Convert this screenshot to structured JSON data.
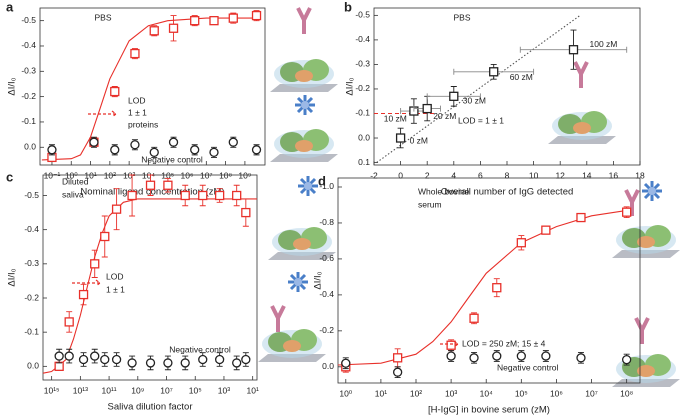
{
  "chart_data": [
    {
      "type": "scatter",
      "panel": "a",
      "xlabel": "Nominal ligand concentration (zM)",
      "ylabel": "ΔI/I₀",
      "log_x": true,
      "xlim": [
        0.024,
        11000000000
      ],
      "ylim": [
        0.07,
        -0.55
      ],
      "xticks": [
        {
          "value": 0.1,
          "label": "10⁻¹"
        },
        {
          "value": 1,
          "label": "10⁰"
        },
        {
          "value": 10,
          "label": "10¹"
        },
        {
          "value": 100,
          "label": "10²"
        },
        {
          "value": 1000,
          "label": "10³"
        },
        {
          "value": 10000,
          "label": "10⁴"
        },
        {
          "value": 100000,
          "label": "10⁵"
        },
        {
          "value": 1000000,
          "label": "10⁶"
        },
        {
          "value": 10000000,
          "label": "10⁷"
        },
        {
          "value": 100000000,
          "label": "10⁸"
        },
        {
          "value": 1000000000,
          "label": "10⁹"
        }
      ],
      "yticks": [
        -0.5,
        -0.4,
        -0.3,
        -0.2,
        -0.1,
        {
          "value": 0,
          "label": "0.0"
        }
      ],
      "series": [
        {
          "marker": "line",
          "color": "#e8302a",
          "x": [
            0.03,
            1,
            3,
            10,
            30,
            100,
            1000,
            10000,
            100000,
            10000000,
            4000000000
          ],
          "values": [
            0.05,
            0.045,
            0.03,
            -0.04,
            -0.15,
            -0.27,
            -0.42,
            -0.48,
            -0.5,
            -0.51,
            -0.51
          ]
        },
        {
          "marker": "square",
          "color": "#e8302a",
          "x": [
            0.1,
            15,
            180,
            2000,
            20000,
            200000,
            2500000,
            25000000,
            250000000,
            4000000000
          ],
          "values": [
            0.04,
            -0.02,
            -0.22,
            -0.37,
            -0.46,
            -0.47,
            -0.5,
            -0.5,
            -0.51,
            -0.52
          ],
          "errors": [
            0.01,
            0.01,
            0.02,
            0.02,
            0.02,
            0.05,
            0.02,
            0.01,
            0.02,
            0.02
          ]
        },
        {
          "marker": "circle",
          "color": "#222222",
          "x": [
            0.1,
            15,
            180,
            2000,
            20000,
            200000,
            2500000,
            25000000,
            250000000,
            4000000000
          ],
          "values": [
            0.01,
            -0.02,
            0.01,
            -0.01,
            0.02,
            -0.02,
            0.01,
            0.02,
            -0.02,
            0.01
          ],
          "errors": [
            0.02,
            0.02,
            0.02,
            0.02,
            0.02,
            0.02,
            0.02,
            0.02,
            0.02,
            0.02
          ]
        }
      ],
      "annotations": [
        {
          "text": "PBS",
          "color": "#e8302a"
        },
        {
          "text": "LOD",
          "color": "#e8302a"
        },
        {
          "text": "1 ± 1",
          "color": "#e8302a"
        },
        {
          "text": "proteins",
          "color": "#e8302a"
        },
        {
          "text": "Negative control",
          "color": "#222222"
        }
      ]
    },
    {
      "type": "scatter",
      "panel": "b",
      "xlabel": "Overall number of IgG detected",
      "ylabel": "ΔI/I₀",
      "log_x": false,
      "xlim": [
        -2,
        18
      ],
      "ylim": [
        0.11,
        -0.53
      ],
      "xticks": [
        -2,
        0,
        2,
        4,
        6,
        8,
        10,
        12,
        14,
        16,
        18
      ],
      "yticks": [
        -0.5,
        -0.4,
        -0.3,
        -0.2,
        -0.1,
        {
          "value": 0,
          "label": "0.0"
        },
        0.1
      ],
      "series": [
        {
          "marker": "line",
          "dash": "dotted",
          "color": "#555555",
          "x": [
            -1.8,
            13.5
          ],
          "values": [
            0.1,
            -0.5
          ]
        },
        {
          "marker": "line",
          "dash": "dashed",
          "color": "#e8302a",
          "x": [
            -2,
            2.6
          ],
          "values": [
            -0.1,
            -0.1
          ]
        },
        {
          "marker": "square",
          "color": "#222222",
          "x": [
            0,
            1,
            2,
            4,
            7,
            13
          ],
          "values": [
            0.0,
            -0.11,
            -0.12,
            -0.17,
            -0.27,
            -0.36
          ],
          "errors": [
            0.04,
            0.05,
            0.05,
            0.04,
            0.03,
            0.08
          ],
          "xerrors": [
            0.3,
            1,
            1,
            2,
            3,
            4
          ],
          "labels": [
            "0 zM",
            "10 zM",
            "20 zM",
            "30 zM",
            "60 zM",
            "100 zM"
          ]
        }
      ],
      "annotations": [
        {
          "text": "PBS",
          "color": "#e8302a"
        },
        {
          "text": "LOD = 1 ± 1",
          "color": "#e8302a"
        }
      ]
    },
    {
      "type": "scatter",
      "panel": "c",
      "xlabel": "Saliva dilution factor",
      "ylabel": "ΔI/I₀",
      "log_x": true,
      "xlim": [
        4000000000000000,
        5
      ],
      "ylim": [
        0.04,
        -0.56
      ],
      "xticks": [
        {
          "value": 1000000000000000,
          "label": "10¹⁵"
        },
        {
          "value": 10000000000000,
          "label": "10¹³"
        },
        {
          "value": 100000000000,
          "label": "10¹¹"
        },
        {
          "value": 1000000000,
          "label": "10⁹"
        },
        {
          "value": 10000000,
          "label": "10⁷"
        },
        {
          "value": 100000,
          "label": "10⁵"
        },
        {
          "value": 1000,
          "label": "10³"
        },
        {
          "value": 10,
          "label": "10¹"
        }
      ],
      "yticks": [
        -0.5,
        -0.4,
        -0.3,
        -0.2,
        -0.1,
        {
          "value": 0,
          "label": "0.0"
        }
      ],
      "series": [
        {
          "marker": "line",
          "color": "#e8302a",
          "x": [
            4000000000000000,
            1000000000000000,
            100000000000000,
            30000000000000,
            10000000000000,
            3000000000000,
            1000000000000,
            300000000000,
            100000000000,
            10000000000,
            1000000000,
            5
          ],
          "values": [
            0.02,
            0.015,
            -0.02,
            -0.08,
            -0.15,
            -0.24,
            -0.32,
            -0.39,
            -0.44,
            -0.48,
            -0.49,
            -0.49
          ]
        },
        {
          "marker": "square",
          "color": "#e8302a",
          "x": [
            300000000000000,
            60000000000000,
            6000000000000,
            1000000000000,
            200000000000,
            30000000000,
            2500000000,
            130000000,
            8000000,
            500000,
            30000,
            2000,
            130,
            30
          ],
          "values": [
            0.0,
            -0.13,
            -0.21,
            -0.3,
            -0.38,
            -0.46,
            -0.5,
            -0.53,
            -0.53,
            -0.5,
            -0.5,
            -0.5,
            -0.5,
            -0.45
          ],
          "errors": [
            0.01,
            0.03,
            0.03,
            0.04,
            0.06,
            0.06,
            0.06,
            0.03,
            0.02,
            0.03,
            0.03,
            0.02,
            0.03,
            0.04
          ]
        },
        {
          "marker": "circle",
          "color": "#222222",
          "x": [
            300000000000000,
            60000000000000,
            6000000000000,
            1000000000000,
            200000000000,
            30000000000,
            2500000000,
            130000000,
            8000000,
            500000,
            30000,
            2000,
            130,
            30
          ],
          "values": [
            -0.03,
            -0.03,
            -0.02,
            -0.03,
            -0.02,
            -0.02,
            -0.01,
            -0.01,
            -0.01,
            -0.01,
            -0.02,
            -0.02,
            -0.01,
            -0.02
          ],
          "errors": [
            0.02,
            0.02,
            0.02,
            0.02,
            0.02,
            0.02,
            0.02,
            0.02,
            0.02,
            0.02,
            0.02,
            0.02,
            0.02,
            0.02
          ]
        }
      ],
      "annotations": [
        {
          "text": "Diluted",
          "color": "#e8302a"
        },
        {
          "text": "saliva",
          "color": "#e8302a"
        },
        {
          "text": "LOD",
          "color": "#e8302a"
        },
        {
          "text": "1 ± 1",
          "color": "#e8302a"
        },
        {
          "text": "Negative control",
          "color": "#222222"
        }
      ]
    },
    {
      "type": "scatter",
      "panel": "d",
      "xlabel": "[H-IgG] in bovine serum (zM)",
      "ylabel": "ΔI/I₀",
      "log_x": true,
      "xlim": [
        0.6,
        240000000
      ],
      "ylim": [
        0.09,
        -1.05
      ],
      "xticks": [
        {
          "value": 1,
          "label": "10⁰"
        },
        {
          "value": 10,
          "label": "10¹"
        },
        {
          "value": 100,
          "label": "10²"
        },
        {
          "value": 1000,
          "label": "10³"
        },
        {
          "value": 10000,
          "label": "10⁴"
        },
        {
          "value": 100000,
          "label": "10⁵"
        },
        {
          "value": 1000000,
          "label": "10⁶"
        },
        {
          "value": 10000000,
          "label": "10⁷"
        },
        {
          "value": 100000000,
          "label": "10⁸"
        }
      ],
      "yticks": [
        {
          "value": -1,
          "label": "-1.0"
        },
        -0.8,
        -0.6,
        -0.4,
        -0.2,
        {
          "value": 0,
          "label": "0.0"
        }
      ],
      "series": [
        {
          "marker": "line",
          "color": "#e8302a",
          "x": [
            0.6,
            10,
            100,
            300,
            1000,
            3000,
            10000,
            100000,
            1000000,
            10000000,
            100000000
          ],
          "values": [
            -0.01,
            -0.02,
            -0.07,
            -0.14,
            -0.25,
            -0.38,
            -0.52,
            -0.69,
            -0.78,
            -0.84,
            -0.87
          ]
        },
        {
          "marker": "square",
          "color": "#e8302a",
          "x": [
            1,
            30,
            1000,
            4500,
            20000,
            100000,
            500000,
            5000000,
            100000000
          ],
          "values": [
            0.0,
            -0.05,
            -0.12,
            -0.27,
            -0.44,
            -0.69,
            -0.76,
            -0.83,
            -0.86
          ],
          "errors": [
            0.03,
            0.05,
            0.03,
            0.03,
            0.05,
            0.04,
            0.02,
            0.02,
            0.03
          ]
        },
        {
          "marker": "circle",
          "color": "#222222",
          "x": [
            1,
            30,
            1000,
            4500,
            20000,
            100000,
            500000,
            5000000,
            100000000
          ],
          "values": [
            -0.02,
            0.03,
            -0.06,
            -0.05,
            -0.06,
            -0.06,
            -0.06,
            -0.05,
            -0.04
          ],
          "errors": [
            0.03,
            0.03,
            0.03,
            0.03,
            0.03,
            0.03,
            0.03,
            0.03,
            0.03
          ]
        }
      ],
      "annotations": [
        {
          "text": "Whole bovine",
          "color": "#e8302a"
        },
        {
          "text": "serum",
          "color": "#e8302a"
        },
        {
          "text": "LOD = 250 zM; 15 ± 4",
          "color": "#e8302a"
        },
        {
          "text": "Negative control",
          "color": "#222222"
        }
      ]
    }
  ]
}
